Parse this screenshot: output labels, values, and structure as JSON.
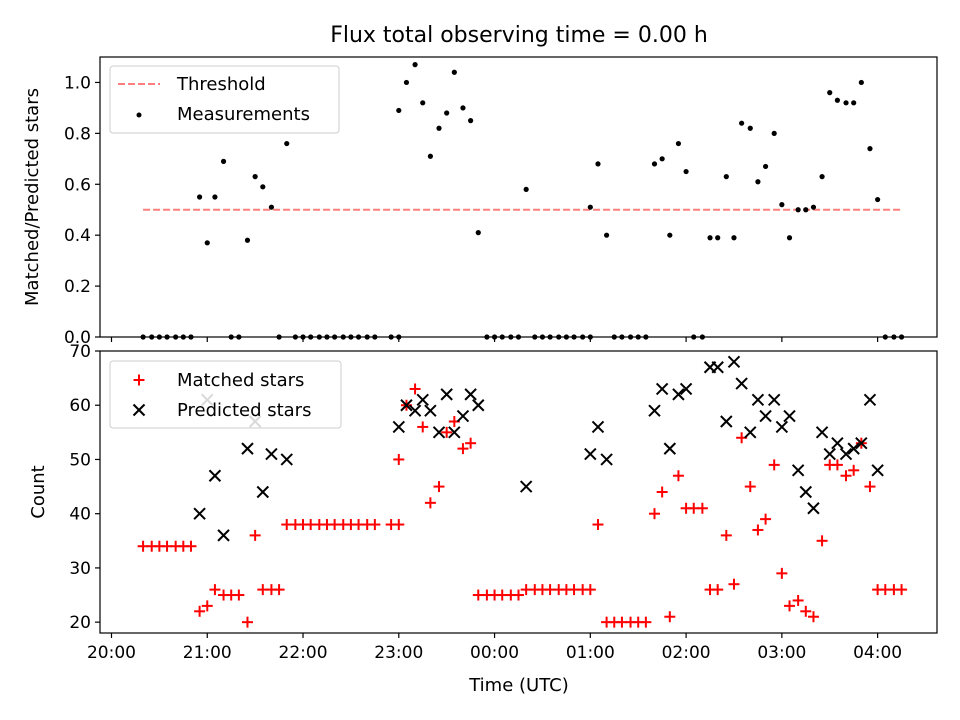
{
  "figure": {
    "title": "Flux total observing time = 0.00 h",
    "xlabel": "Time (UTC)"
  },
  "chart_data": [
    {
      "type": "scatter",
      "title": "Flux total observing time = 0.00 h",
      "ylabel": "Matched/Predicted stars",
      "xlabel": "",
      "x_unit": "hours since 20:00 UTC",
      "xlim": [
        -0.12,
        8.62
      ],
      "ylim": [
        0,
        1.1
      ],
      "yticks": [
        0.0,
        0.2,
        0.4,
        0.6,
        0.8,
        1.0
      ],
      "ytick_labels": [
        "0.0",
        "0.2",
        "0.4",
        "0.6",
        "0.8",
        "1.0"
      ],
      "legend_position": "upper-left",
      "legend": [
        {
          "label": "Threshold",
          "marker": "dashed-line",
          "color": "#ff7f7f"
        },
        {
          "label": "Measurements",
          "marker": "dot",
          "color": "#000000"
        }
      ],
      "threshold": {
        "name": "Threshold",
        "y": 0.5,
        "x_range": [
          0.33,
          8.25
        ],
        "color": "#ff7f7f",
        "style": "dashed"
      },
      "series": [
        {
          "name": "Measurements",
          "color": "#000000",
          "points": [
            [
              0.33,
              0
            ],
            [
              0.42,
              0
            ],
            [
              0.5,
              0
            ],
            [
              0.58,
              0
            ],
            [
              0.67,
              0
            ],
            [
              0.75,
              0
            ],
            [
              0.83,
              0
            ],
            [
              0.92,
              0.55
            ],
            [
              1.0,
              0.37
            ],
            [
              1.08,
              0.55
            ],
            [
              1.17,
              0.69
            ],
            [
              1.25,
              0
            ],
            [
              1.33,
              0
            ],
            [
              1.42,
              0.38
            ],
            [
              1.5,
              0.63
            ],
            [
              1.58,
              0.59
            ],
            [
              1.67,
              0.51
            ],
            [
              1.75,
              0
            ],
            [
              1.83,
              0.76
            ],
            [
              1.92,
              0
            ],
            [
              2.0,
              0
            ],
            [
              2.08,
              0
            ],
            [
              2.17,
              0
            ],
            [
              2.25,
              0
            ],
            [
              2.33,
              0
            ],
            [
              2.42,
              0
            ],
            [
              2.5,
              0
            ],
            [
              2.58,
              0
            ],
            [
              2.67,
              0
            ],
            [
              2.75,
              0
            ],
            [
              2.92,
              0
            ],
            [
              3.0,
              0
            ],
            [
              3.0,
              0.89
            ],
            [
              3.08,
              1.0
            ],
            [
              3.17,
              1.07
            ],
            [
              3.25,
              0.92
            ],
            [
              3.33,
              0.71
            ],
            [
              3.42,
              0.82
            ],
            [
              3.5,
              0.88
            ],
            [
              3.58,
              1.04
            ],
            [
              3.67,
              0.9
            ],
            [
              3.75,
              0.85
            ],
            [
              3.83,
              0.41
            ],
            [
              3.92,
              0
            ],
            [
              4.0,
              0
            ],
            [
              4.08,
              0
            ],
            [
              4.17,
              0
            ],
            [
              4.25,
              0
            ],
            [
              4.33,
              0.58
            ],
            [
              4.42,
              0
            ],
            [
              4.5,
              0
            ],
            [
              4.58,
              0
            ],
            [
              4.67,
              0
            ],
            [
              4.75,
              0
            ],
            [
              4.83,
              0
            ],
            [
              4.92,
              0
            ],
            [
              5.0,
              0
            ],
            [
              5.0,
              0.51
            ],
            [
              5.08,
              0.68
            ],
            [
              5.17,
              0.4
            ],
            [
              5.25,
              0
            ],
            [
              5.33,
              0
            ],
            [
              5.42,
              0
            ],
            [
              5.5,
              0
            ],
            [
              5.58,
              0
            ],
            [
              5.67,
              0.68
            ],
            [
              5.75,
              0.7
            ],
            [
              5.83,
              0.4
            ],
            [
              5.92,
              0.76
            ],
            [
              6.0,
              0.65
            ],
            [
              6.08,
              0
            ],
            [
              6.17,
              0
            ],
            [
              6.25,
              0.39
            ],
            [
              6.33,
              0.39
            ],
            [
              6.42,
              0.63
            ],
            [
              6.5,
              0.39
            ],
            [
              6.58,
              0.84
            ],
            [
              6.67,
              0.82
            ],
            [
              6.75,
              0.61
            ],
            [
              6.83,
              0.67
            ],
            [
              6.92,
              0.8
            ],
            [
              7.0,
              0.52
            ],
            [
              7.08,
              0.39
            ],
            [
              7.17,
              0.5
            ],
            [
              7.25,
              0.5
            ],
            [
              7.33,
              0.51
            ],
            [
              7.42,
              0.63
            ],
            [
              7.5,
              0.96
            ],
            [
              7.58,
              0.93
            ],
            [
              7.67,
              0.92
            ],
            [
              7.75,
              0.92
            ],
            [
              7.83,
              1.0
            ],
            [
              7.92,
              0.74
            ],
            [
              8.0,
              0.54
            ],
            [
              8.08,
              0
            ],
            [
              8.17,
              0
            ],
            [
              8.25,
              0
            ]
          ]
        }
      ]
    },
    {
      "type": "scatter",
      "title": "",
      "ylabel": "Count",
      "xlabel": "Time (UTC)",
      "x_unit": "hours since 20:00 UTC",
      "xlim": [
        -0.12,
        8.62
      ],
      "ylim": [
        18,
        70
      ],
      "xticks": [
        0,
        1,
        2,
        3,
        4,
        5,
        6,
        7,
        8
      ],
      "xtick_labels": [
        "20:00",
        "21:00",
        "22:00",
        "23:00",
        "00:00",
        "01:00",
        "02:00",
        "03:00",
        "04:00"
      ],
      "yticks": [
        20,
        30,
        40,
        50,
        60,
        70
      ],
      "ytick_labels": [
        "20",
        "30",
        "40",
        "50",
        "60",
        "70"
      ],
      "legend_position": "upper-left",
      "legend": [
        {
          "label": "Matched stars",
          "marker": "plus",
          "color": "#ff0000"
        },
        {
          "label": "Predicted stars",
          "marker": "x",
          "color": "#000000"
        }
      ],
      "series": [
        {
          "name": "Matched stars",
          "color": "#ff0000",
          "points": [
            [
              0.33,
              34
            ],
            [
              0.42,
              34
            ],
            [
              0.5,
              34
            ],
            [
              0.58,
              34
            ],
            [
              0.67,
              34
            ],
            [
              0.75,
              34
            ],
            [
              0.83,
              34
            ],
            [
              0.92,
              22
            ],
            [
              1.0,
              23
            ],
            [
              1.08,
              26
            ],
            [
              1.17,
              25
            ],
            [
              1.25,
              25
            ],
            [
              1.33,
              25
            ],
            [
              1.42,
              20
            ],
            [
              1.5,
              36
            ],
            [
              1.58,
              26
            ],
            [
              1.67,
              26
            ],
            [
              1.75,
              26
            ],
            [
              1.83,
              38
            ],
            [
              1.92,
              38
            ],
            [
              2.0,
              38
            ],
            [
              2.08,
              38
            ],
            [
              2.17,
              38
            ],
            [
              2.25,
              38
            ],
            [
              2.33,
              38
            ],
            [
              2.42,
              38
            ],
            [
              2.5,
              38
            ],
            [
              2.58,
              38
            ],
            [
              2.67,
              38
            ],
            [
              2.75,
              38
            ],
            [
              2.92,
              38
            ],
            [
              3.0,
              38
            ],
            [
              3.0,
              50
            ],
            [
              3.08,
              60
            ],
            [
              3.17,
              63
            ],
            [
              3.25,
              56
            ],
            [
              3.33,
              42
            ],
            [
              3.42,
              45
            ],
            [
              3.5,
              55
            ],
            [
              3.58,
              57
            ],
            [
              3.67,
              52
            ],
            [
              3.75,
              53
            ],
            [
              3.83,
              25
            ],
            [
              3.92,
              25
            ],
            [
              4.0,
              25
            ],
            [
              4.08,
              25
            ],
            [
              4.17,
              25
            ],
            [
              4.25,
              25
            ],
            [
              4.33,
              26
            ],
            [
              4.42,
              26
            ],
            [
              4.5,
              26
            ],
            [
              4.58,
              26
            ],
            [
              4.67,
              26
            ],
            [
              4.75,
              26
            ],
            [
              4.83,
              26
            ],
            [
              4.92,
              26
            ],
            [
              5.0,
              26
            ],
            [
              5.08,
              38
            ],
            [
              5.17,
              20
            ],
            [
              5.25,
              20
            ],
            [
              5.33,
              20
            ],
            [
              5.42,
              20
            ],
            [
              5.5,
              20
            ],
            [
              5.58,
              20
            ],
            [
              5.67,
              40
            ],
            [
              5.75,
              44
            ],
            [
              5.83,
              21
            ],
            [
              5.92,
              47
            ],
            [
              6.0,
              41
            ],
            [
              6.08,
              41
            ],
            [
              6.17,
              41
            ],
            [
              6.25,
              26
            ],
            [
              6.33,
              26
            ],
            [
              6.42,
              36
            ],
            [
              6.5,
              27
            ],
            [
              6.58,
              54
            ],
            [
              6.67,
              45
            ],
            [
              6.75,
              37
            ],
            [
              6.83,
              39
            ],
            [
              6.92,
              49
            ],
            [
              7.0,
              29
            ],
            [
              7.08,
              23
            ],
            [
              7.17,
              24
            ],
            [
              7.25,
              22
            ],
            [
              7.33,
              21
            ],
            [
              7.42,
              35
            ],
            [
              7.5,
              49
            ],
            [
              7.58,
              49
            ],
            [
              7.67,
              47
            ],
            [
              7.75,
              48
            ],
            [
              7.83,
              53
            ],
            [
              7.92,
              45
            ],
            [
              8.0,
              26
            ],
            [
              8.08,
              26
            ],
            [
              8.17,
              26
            ],
            [
              8.25,
              26
            ]
          ]
        },
        {
          "name": "Predicted stars",
          "color": "#000000",
          "points": [
            [
              0.92,
              40
            ],
            [
              1.0,
              61
            ],
            [
              1.08,
              47
            ],
            [
              1.17,
              36
            ],
            [
              1.42,
              52
            ],
            [
              1.5,
              57
            ],
            [
              1.58,
              44
            ],
            [
              1.67,
              51
            ],
            [
              1.83,
              50
            ],
            [
              3.0,
              56
            ],
            [
              3.08,
              60
            ],
            [
              3.17,
              59
            ],
            [
              3.25,
              61
            ],
            [
              3.33,
              59
            ],
            [
              3.42,
              55
            ],
            [
              3.5,
              62
            ],
            [
              3.58,
              55
            ],
            [
              3.67,
              58
            ],
            [
              3.75,
              62
            ],
            [
              3.83,
              60
            ],
            [
              4.33,
              45
            ],
            [
              5.0,
              51
            ],
            [
              5.08,
              56
            ],
            [
              5.17,
              50
            ],
            [
              5.67,
              59
            ],
            [
              5.75,
              63
            ],
            [
              5.83,
              52
            ],
            [
              5.92,
              62
            ],
            [
              6.0,
              63
            ],
            [
              6.25,
              67
            ],
            [
              6.33,
              67
            ],
            [
              6.42,
              57
            ],
            [
              6.5,
              68
            ],
            [
              6.58,
              64
            ],
            [
              6.67,
              55
            ],
            [
              6.75,
              61
            ],
            [
              6.83,
              58
            ],
            [
              6.92,
              61
            ],
            [
              7.0,
              56
            ],
            [
              7.08,
              58
            ],
            [
              7.17,
              48
            ],
            [
              7.25,
              44
            ],
            [
              7.33,
              41
            ],
            [
              7.42,
              55
            ],
            [
              7.5,
              51
            ],
            [
              7.58,
              53
            ],
            [
              7.67,
              51
            ],
            [
              7.75,
              52
            ],
            [
              7.83,
              53
            ],
            [
              7.92,
              61
            ],
            [
              8.0,
              48
            ]
          ]
        }
      ]
    }
  ]
}
